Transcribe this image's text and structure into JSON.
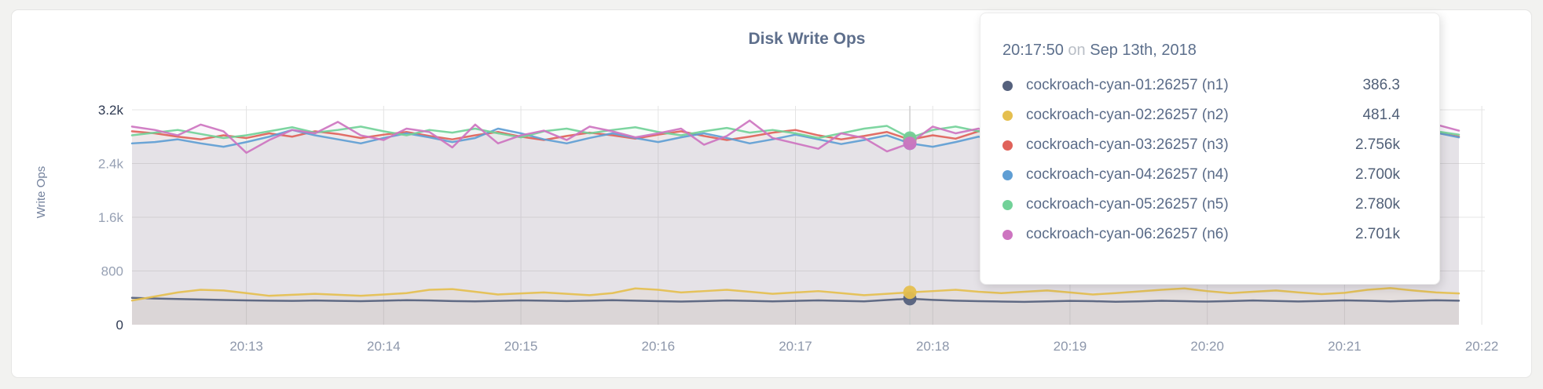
{
  "chart": {
    "title": "Disk Write Ops",
    "y_axis_title": "Write Ops",
    "colors": {
      "grid": "#e4e4e4",
      "hover_line": "#cfcfcf",
      "title_text": "#5e6f8c"
    }
  },
  "chart_data": {
    "type": "line",
    "title": "Disk Write Ops",
    "xlabel": "",
    "ylabel": "Write Ops",
    "ylim": [
      0,
      3200
    ],
    "grid": true,
    "legend_position": "tooltip",
    "x_start_time": "20:12:10",
    "x_end_time": "20:21:50",
    "sample_interval_sec": 10,
    "x_ticks": [
      {
        "label": "20:13",
        "offset_sec": 50
      },
      {
        "label": "20:14",
        "offset_sec": 110
      },
      {
        "label": "20:15",
        "offset_sec": 170
      },
      {
        "label": "20:16",
        "offset_sec": 230
      },
      {
        "label": "20:17",
        "offset_sec": 290
      },
      {
        "label": "20:18",
        "offset_sec": 350
      },
      {
        "label": "20:19",
        "offset_sec": 410
      },
      {
        "label": "20:20",
        "offset_sec": 470
      },
      {
        "label": "20:21",
        "offset_sec": 530
      },
      {
        "label": "20:22",
        "offset_sec": 590
      }
    ],
    "y_ticks": [
      {
        "label": "0",
        "value": 0,
        "emphasized": true
      },
      {
        "label": "800",
        "value": 800,
        "emphasized": false
      },
      {
        "label": "1.6k",
        "value": 1600,
        "emphasized": false
      },
      {
        "label": "2.4k",
        "value": 2400,
        "emphasized": false
      },
      {
        "label": "3.2k",
        "value": 3200,
        "emphasized": true
      }
    ],
    "series": [
      {
        "name": "cockroach-cyan-01:26257 (n1)",
        "color": "#55617d",
        "values": [
          400,
          390,
          382,
          375,
          368,
          362,
          358,
          355,
          360,
          355,
          350,
          358,
          365,
          360,
          352,
          348,
          355,
          362,
          358,
          352,
          358,
          365,
          358,
          350,
          345,
          352,
          360,
          355,
          348,
          355,
          362,
          355,
          348,
          368,
          386.3,
          370,
          358,
          350,
          345,
          340,
          348,
          355,
          350,
          342,
          348,
          356,
          350,
          344,
          352,
          360,
          354,
          346,
          354,
          362,
          356,
          348,
          356,
          364,
          358
        ]
      },
      {
        "name": "cockroach-cyan-02:26257 (n2)",
        "color": "#e5bf4f",
        "values": [
          360,
          420,
          480,
          520,
          510,
          470,
          430,
          445,
          460,
          445,
          430,
          450,
          470,
          520,
          530,
          490,
          450,
          465,
          480,
          460,
          440,
          470,
          540,
          520,
          480,
          500,
          520,
          490,
          460,
          480,
          500,
          470,
          440,
          460,
          481.4,
          500,
          520,
          490,
          470,
          490,
          510,
          480,
          450,
          470,
          495,
          520,
          540,
          500,
          470,
          490,
          510,
          480,
          455,
          475,
          520,
          545,
          510,
          480,
          465
        ]
      },
      {
        "name": "cockroach-cyan-03:26257 (n3)",
        "color": "#e0625a",
        "values": [
          2880,
          2850,
          2800,
          2760,
          2820,
          2780,
          2850,
          2800,
          2880,
          2840,
          2780,
          2830,
          2870,
          2810,
          2760,
          2820,
          2870,
          2800,
          2750,
          2810,
          2860,
          2820,
          2770,
          2830,
          2880,
          2810,
          2750,
          2800,
          2860,
          2900,
          2820,
          2760,
          2810,
          2870,
          2756,
          2820,
          2770,
          2880,
          2920,
          2850,
          2780,
          2830,
          2870,
          2800,
          2750,
          2820,
          2860,
          2790,
          2840,
          2880,
          2810,
          2760,
          2830,
          2870,
          2800,
          2760,
          2820,
          2860,
          2800
        ]
      },
      {
        "name": "cockroach-cyan-04:26257 (n4)",
        "color": "#5f9ed4",
        "values": [
          2700,
          2720,
          2760,
          2700,
          2650,
          2720,
          2800,
          2900,
          2820,
          2760,
          2700,
          2780,
          2850,
          2790,
          2720,
          2780,
          2920,
          2850,
          2760,
          2700,
          2780,
          2850,
          2780,
          2720,
          2790,
          2850,
          2780,
          2700,
          2760,
          2830,
          2760,
          2690,
          2750,
          2820,
          2700,
          2650,
          2720,
          2800,
          2740,
          2690,
          2760,
          2820,
          2750,
          2700,
          2770,
          2840,
          2770,
          2710,
          2780,
          2850,
          2780,
          2720,
          2790,
          2850,
          2790,
          2730,
          2800,
          2860,
          2790
        ]
      },
      {
        "name": "cockroach-cyan-05:26257 (n5)",
        "color": "#72d198",
        "values": [
          2820,
          2860,
          2900,
          2840,
          2780,
          2820,
          2880,
          2940,
          2860,
          2900,
          2950,
          2880,
          2820,
          2900,
          2860,
          2920,
          2850,
          2790,
          2880,
          2920,
          2850,
          2900,
          2940,
          2870,
          2820,
          2880,
          2930,
          2860,
          2900,
          2850,
          2780,
          2850,
          2920,
          2960,
          2780,
          2900,
          2950,
          2880,
          2820,
          2870,
          2920,
          2860,
          2900,
          2840,
          2890,
          2930,
          2870,
          2810,
          2880,
          2920,
          2860,
          2800,
          2870,
          2910,
          2850,
          2890,
          2940,
          2880,
          2830
        ]
      },
      {
        "name": "cockroach-cyan-06:26257 (n6)",
        "color": "#cd74c0",
        "values": [
          2950,
          2900,
          2820,
          2980,
          2880,
          2560,
          2750,
          2900,
          2850,
          3020,
          2820,
          2750,
          2920,
          2870,
          2640,
          2980,
          2700,
          2820,
          2890,
          2750,
          2950,
          2880,
          2790,
          2850,
          2920,
          2680,
          2810,
          3040,
          2780,
          2700,
          2620,
          2850,
          2780,
          2580,
          2701,
          2950,
          2850,
          2920,
          2800,
          2750,
          2880,
          2940,
          2820,
          2760,
          2900,
          2980,
          2840,
          2770,
          2850,
          2920,
          2780,
          2700,
          2870,
          2930,
          2810,
          2750,
          2880,
          2980,
          2890
        ]
      }
    ]
  },
  "tooltip": {
    "time": "20:17:50",
    "on_word": "on",
    "date": "Sep 13th, 2018",
    "hover_offset_sec": 340,
    "rows": [
      {
        "label": "cockroach-cyan-01:26257 (n1)",
        "value": "386.3",
        "color": "#55617d"
      },
      {
        "label": "cockroach-cyan-02:26257 (n2)",
        "value": "481.4",
        "color": "#e5bf4f"
      },
      {
        "label": "cockroach-cyan-03:26257 (n3)",
        "value": "2.756k",
        "color": "#e0625a"
      },
      {
        "label": "cockroach-cyan-04:26257 (n4)",
        "value": "2.700k",
        "color": "#5f9ed4"
      },
      {
        "label": "cockroach-cyan-05:26257 (n5)",
        "value": "2.780k",
        "color": "#72d198"
      },
      {
        "label": "cockroach-cyan-06:26257 (n6)",
        "value": "2.701k",
        "color": "#cd74c0"
      }
    ]
  }
}
